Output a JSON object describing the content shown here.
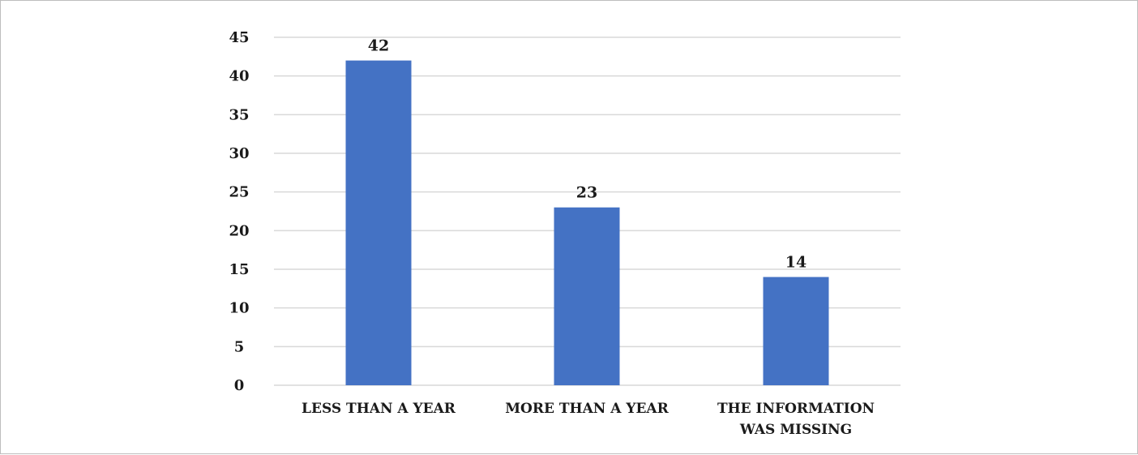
{
  "chart_data": {
    "type": "bar",
    "categories": [
      [
        "LESS THAN A YEAR"
      ],
      [
        "MORE THAN A YEAR"
      ],
      [
        "THE INFORMATION",
        "WAS MISSING"
      ]
    ],
    "values": [
      42,
      23,
      14
    ],
    "data_labels": [
      "42",
      "23",
      "14"
    ],
    "ylim": [
      0,
      45
    ],
    "yticks": [
      "0",
      "5",
      "10",
      "15",
      "20",
      "25",
      "30",
      "35",
      "40",
      "45"
    ],
    "grid": true,
    "legend": "none",
    "bar_color": "#4472c4",
    "grid_color": "#d9d9d9"
  }
}
